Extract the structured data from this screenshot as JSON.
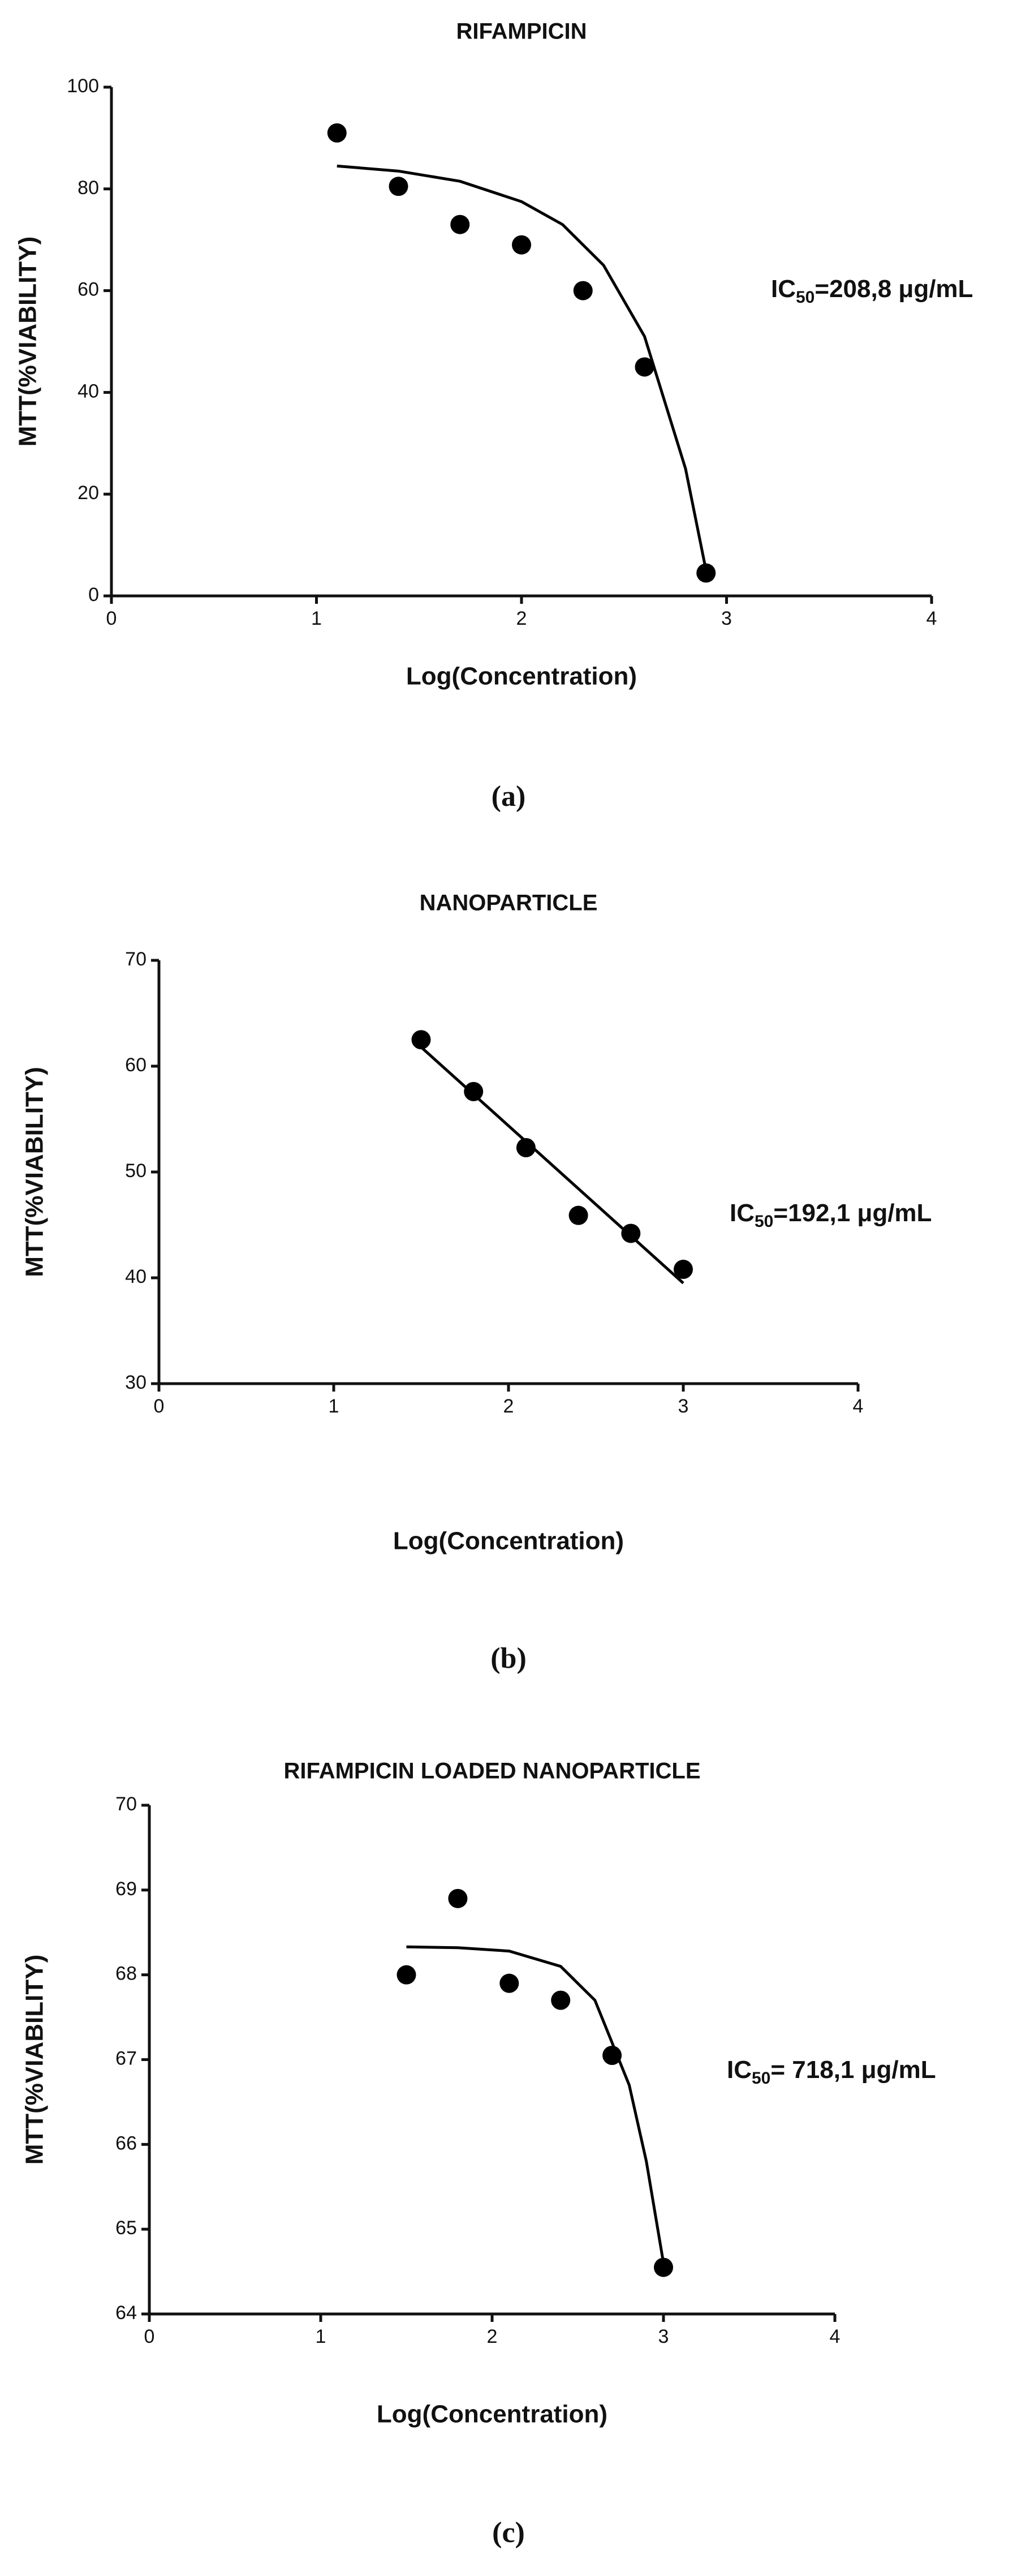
{
  "chart_data": [
    {
      "type": "scatter",
      "title": "RIFAMPICIN",
      "color": "#000000",
      "x": [
        1.1,
        1.4,
        1.7,
        2.0,
        2.3,
        2.6,
        2.9
      ],
      "values": [
        91,
        80.5,
        73,
        69,
        60,
        45,
        4.5
      ],
      "fit": {
        "x": [
          1.1,
          1.4,
          1.7,
          2.0,
          2.2,
          2.4,
          2.6,
          2.8,
          2.9
        ],
        "values": [
          84.5,
          83.5,
          81.5,
          77.5,
          73,
          65,
          51,
          25,
          5
        ]
      },
      "xlim": [
        0,
        4
      ],
      "ylim": [
        0,
        100
      ],
      "xticks": [
        0,
        1,
        2,
        3,
        4
      ],
      "yticks": [
        0,
        20,
        40,
        60,
        80,
        100
      ],
      "x_label": "Log(Concentration)",
      "y_label": "MTT(%VIABILITY)",
      "annotation": {
        "prefix": "IC",
        "subscript": "50",
        "text": "=208,8 μg/mL"
      },
      "caption": "(a)"
    },
    {
      "type": "scatter",
      "title": "NANOPARTICLE",
      "color": "#000000",
      "x": [
        1.5,
        1.8,
        2.1,
        2.4,
        2.7,
        3.0
      ],
      "values": [
        62.5,
        57.6,
        52.3,
        45.9,
        44.2,
        40.8
      ],
      "fit": {
        "x": [
          1.5,
          3.0
        ],
        "values": [
          61.8,
          39.5
        ]
      },
      "xlim": [
        0,
        4
      ],
      "ylim": [
        30,
        70
      ],
      "xticks": [
        0,
        1,
        2,
        3,
        4
      ],
      "yticks": [
        30,
        40,
        50,
        60,
        70
      ],
      "x_label": "Log(Concentration)",
      "y_label": "MTT(%VIABILITY)",
      "annotation": {
        "prefix": "IC",
        "subscript": "50",
        "text": "=192,1 μg/mL"
      },
      "caption": "(b)"
    },
    {
      "type": "scatter",
      "title": "RIFAMPICIN LOADED NANOPARTICLE",
      "color": "#000000",
      "x": [
        1.5,
        1.8,
        2.1,
        2.4,
        2.7,
        3.0
      ],
      "values": [
        68.0,
        68.9,
        67.9,
        67.7,
        67.05,
        64.55
      ],
      "fit": {
        "x": [
          1.5,
          1.8,
          2.1,
          2.4,
          2.6,
          2.8,
          2.9,
          3.0
        ],
        "values": [
          68.33,
          68.32,
          68.28,
          68.1,
          67.7,
          66.7,
          65.8,
          64.6
        ]
      },
      "xlim": [
        0,
        4
      ],
      "ylim": [
        64,
        70
      ],
      "xticks": [
        0,
        1,
        2,
        3,
        4
      ],
      "yticks": [
        64,
        65,
        66,
        67,
        68,
        69,
        70
      ],
      "x_label": "Log(Concentration)",
      "y_label": "MTT(%VIABILITY)",
      "annotation": {
        "prefix": "IC",
        "subscript": "50",
        "text": "= 718,1 μg/mL"
      },
      "caption": "(c)"
    }
  ]
}
